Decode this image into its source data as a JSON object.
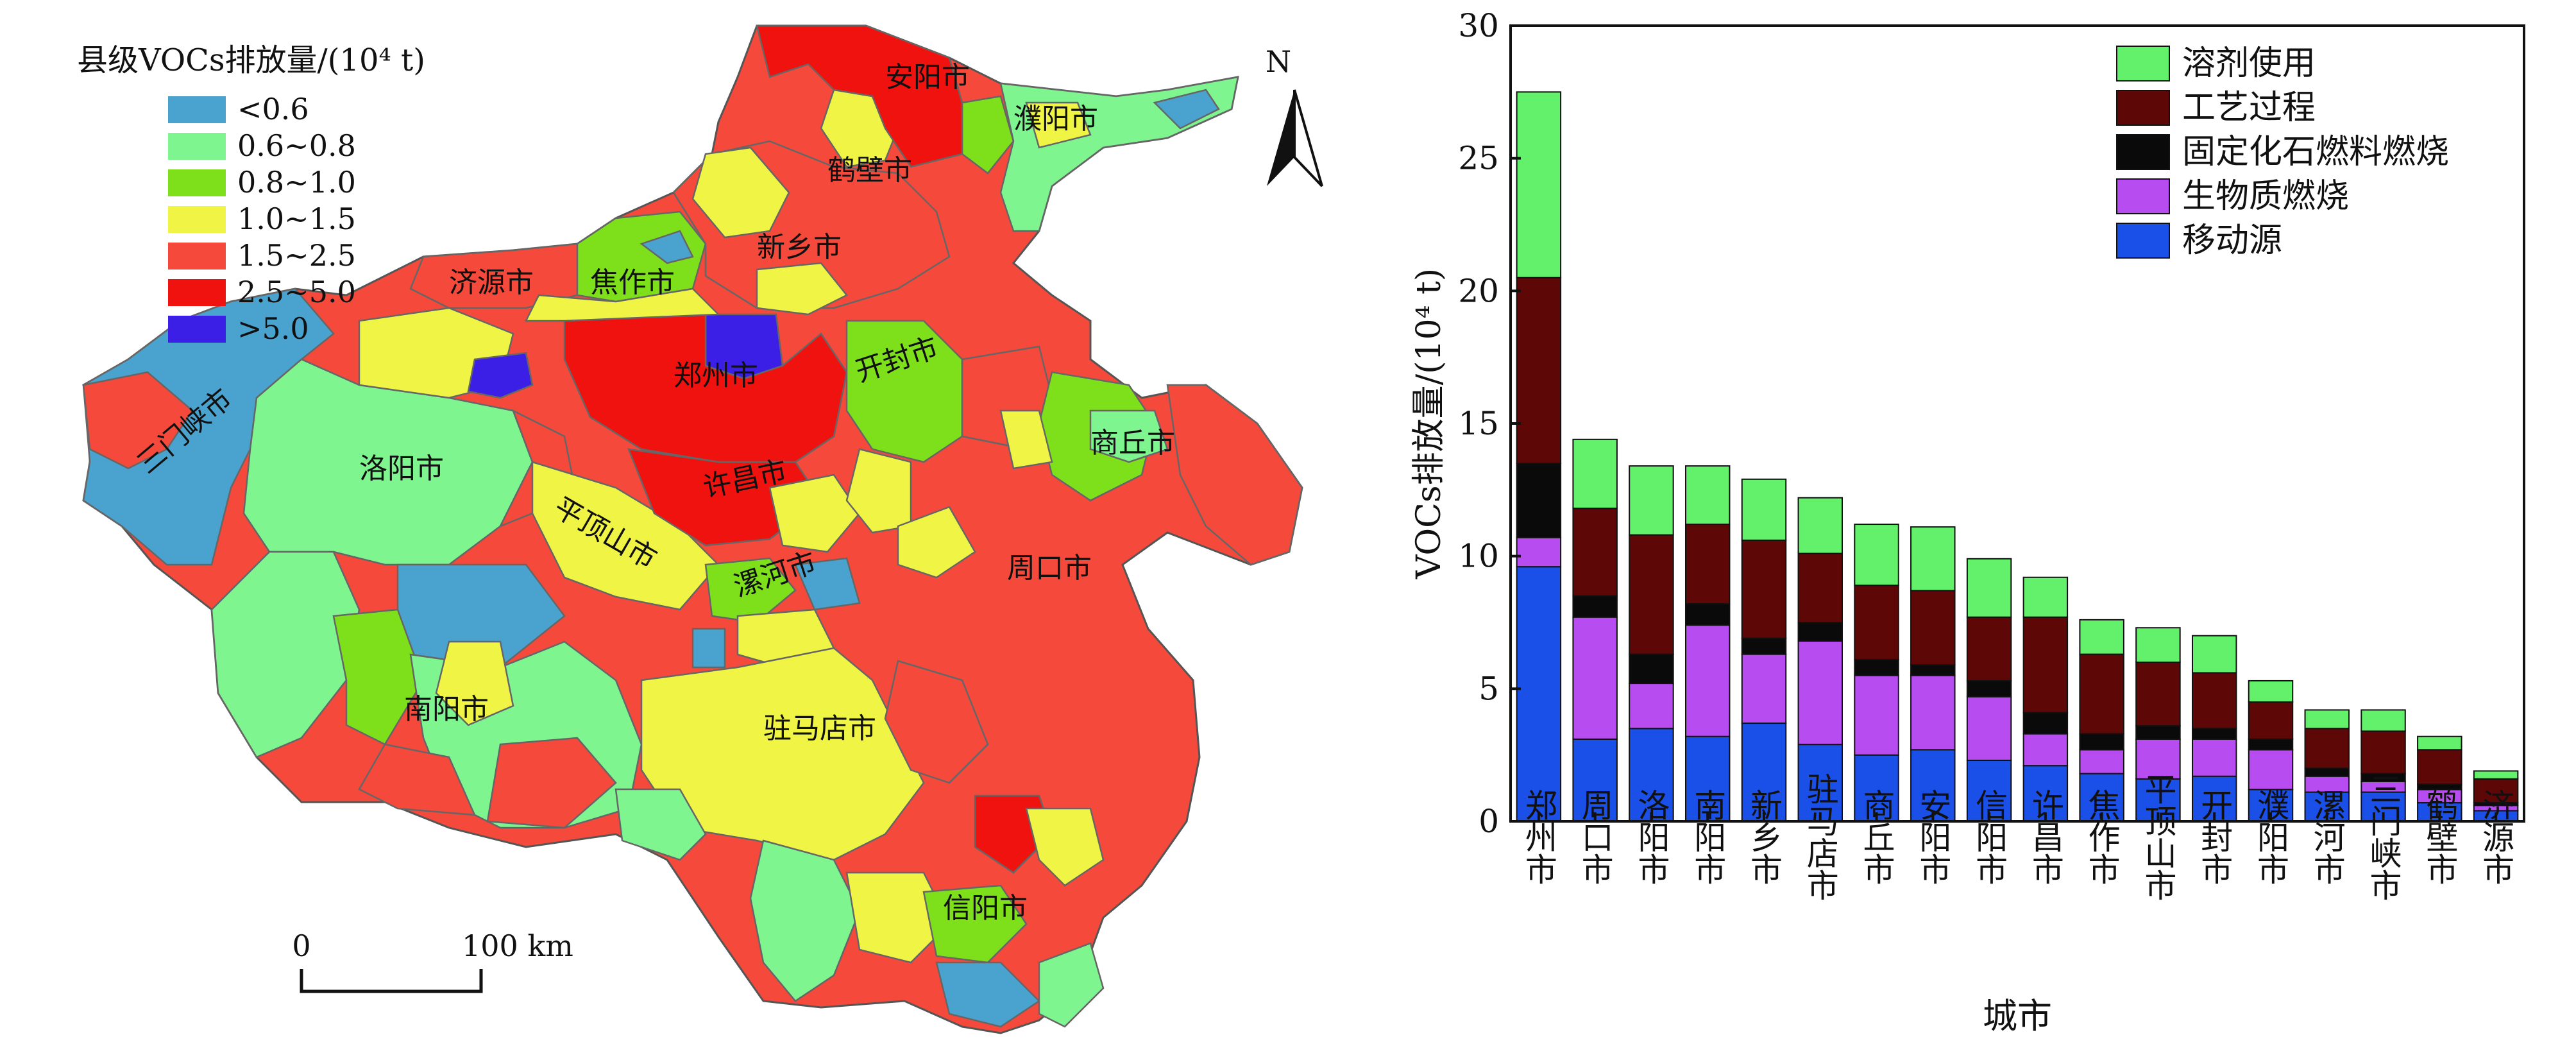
{
  "map": {
    "legend_title": "县级VOCs排放量/(10⁴ t)",
    "legend_items": [
      {
        "label": "<0.6",
        "color": "#4aa3cf"
      },
      {
        "label": "0.6~0.8",
        "color": "#7ef58f"
      },
      {
        "label": "0.8~1.0",
        "color": "#7ee01b"
      },
      {
        "label": "1.0~1.5",
        "color": "#f0f545"
      },
      {
        "label": "1.5~2.5",
        "color": "#f4493b"
      },
      {
        "label": "2.5~5.0",
        "color": "#f0120f"
      },
      {
        "label": ">5.0",
        "color": "#3b1fe6"
      }
    ],
    "north_label": "N",
    "scale_start": "0",
    "scale_end": "100 km",
    "city_labels": [
      "安阳市",
      "濮阳市",
      "鹤壁市",
      "新乡市",
      "济源市",
      "焦作市",
      "郑州市",
      "开封市",
      "三门峡市",
      "洛阳市",
      "商丘市",
      "许昌市",
      "平顶山市",
      "周口市",
      "漯河市",
      "南阳市",
      "驻马店市",
      "信阳市"
    ]
  },
  "chart_data": {
    "type": "bar",
    "stacked": true,
    "categories": [
      "郑州市",
      "周口市",
      "洛阳市",
      "南阳市",
      "新乡市",
      "驻马店市",
      "商丘市",
      "安阳市",
      "信阳市",
      "许昌市",
      "焦作市",
      "平顶山市",
      "开封市",
      "濮阳市",
      "漯河市",
      "三门峡市",
      "鹤壁市",
      "济源市"
    ],
    "series": [
      {
        "name": "移动源",
        "color": "#1a4fe8",
        "values": [
          9.6,
          3.1,
          3.5,
          3.2,
          3.7,
          2.9,
          2.5,
          2.7,
          2.3,
          2.1,
          1.8,
          1.6,
          1.7,
          1.2,
          1.1,
          1.1,
          0.7,
          0.4
        ]
      },
      {
        "name": "生物质燃烧",
        "color": "#b74cf0",
        "values": [
          1.1,
          4.6,
          1.7,
          4.2,
          2.6,
          3.9,
          3.0,
          2.8,
          2.4,
          1.2,
          0.9,
          1.5,
          1.4,
          1.5,
          0.6,
          0.4,
          0.5,
          0.2
        ]
      },
      {
        "name": "固定化石燃料燃烧",
        "color": "#0a0a0a",
        "values": [
          2.8,
          0.8,
          1.1,
          0.8,
          0.6,
          0.7,
          0.6,
          0.4,
          0.6,
          0.8,
          0.6,
          0.5,
          0.4,
          0.4,
          0.3,
          0.3,
          0.2,
          0.1
        ]
      },
      {
        "name": "工艺过程",
        "color": "#5e0707",
        "values": [
          7.0,
          3.3,
          4.5,
          3.0,
          3.7,
          2.6,
          2.8,
          2.8,
          2.4,
          3.6,
          3.0,
          2.4,
          2.1,
          1.4,
          1.5,
          1.6,
          1.3,
          0.9
        ]
      },
      {
        "name": "溶剂使用",
        "color": "#63f06a",
        "values": [
          7.0,
          2.6,
          2.6,
          2.2,
          2.3,
          2.1,
          2.3,
          2.4,
          2.2,
          1.5,
          1.3,
          1.3,
          1.4,
          0.8,
          0.7,
          0.8,
          0.5,
          0.3
        ]
      }
    ],
    "xlabel": "城市",
    "ylabel": "VOCs排放量/(10⁴ t)",
    "ylim": [
      0,
      30
    ],
    "yticks": [
      0,
      5,
      10,
      15,
      20,
      25,
      30
    ],
    "legend_position": "top-right",
    "grid": false
  }
}
